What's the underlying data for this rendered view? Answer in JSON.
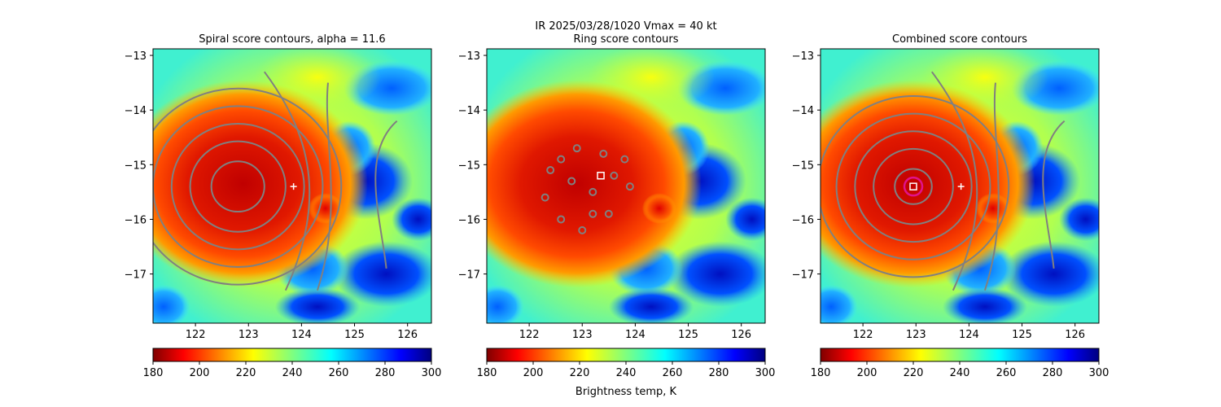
{
  "figure": {
    "suptitle_line1": "IR  2025/03/28/1020    Vmax = 40 kt",
    "colorbar_label": "Brightness temp, K"
  },
  "chart_data": [
    {
      "type": "heatmap",
      "title": "Spiral score contours, alpha = 11.6",
      "xlim": [
        121.2,
        126.45
      ],
      "ylim": [
        -17.9,
        -12.88
      ],
      "xticks": [
        122,
        123,
        124,
        125,
        126
      ],
      "yticks": [
        -13,
        -14,
        -15,
        -16,
        -17
      ],
      "colorbar": {
        "vmin": 180,
        "vmax": 300,
        "ticks": [
          180,
          200,
          220,
          240,
          260,
          280,
          300
        ],
        "cmap": "jet_r"
      },
      "markers": [
        {
          "kind": "plus",
          "lon": 123.85,
          "lat": -15.4,
          "color": "#ffffff"
        }
      ],
      "contour_rings": {
        "center": [
          122.8,
          -15.4
        ],
        "radii_deg": [
          0.5,
          0.9,
          1.25,
          1.6,
          1.95
        ]
      }
    },
    {
      "type": "heatmap",
      "title": "Ring score contours",
      "xlim": [
        121.2,
        126.45
      ],
      "ylim": [
        -17.9,
        -12.88
      ],
      "xticks": [
        122,
        123,
        124,
        125,
        126
      ],
      "yticks": [
        -13,
        -14,
        -15,
        -16,
        -17
      ],
      "colorbar": {
        "vmin": 180,
        "vmax": 300,
        "ticks": [
          180,
          200,
          220,
          240,
          260,
          280,
          300
        ],
        "cmap": "jet_r"
      },
      "markers": [
        {
          "kind": "square",
          "lon": 123.35,
          "lat": -15.2,
          "color": "#ffffff"
        }
      ]
    },
    {
      "type": "heatmap",
      "title": "Combined score contours",
      "xlim": [
        121.2,
        126.45
      ],
      "ylim": [
        -17.9,
        -12.88
      ],
      "xticks": [
        122,
        123,
        124,
        125,
        126
      ],
      "yticks": [
        -13,
        -14,
        -15,
        -16,
        -17
      ],
      "colorbar": {
        "vmin": 180,
        "vmax": 300,
        "ticks": [
          180,
          200,
          220,
          240,
          260,
          280,
          300
        ],
        "cmap": "jet_r"
      },
      "markers": [
        {
          "kind": "plus",
          "lon": 123.85,
          "lat": -15.4,
          "color": "#ffffff"
        },
        {
          "kind": "square",
          "lon": 122.95,
          "lat": -15.4,
          "color": "#ffffff"
        },
        {
          "kind": "circle",
          "lon": 122.95,
          "lat": -15.4,
          "color": "#e0138c"
        }
      ],
      "contour_rings": {
        "center": [
          122.95,
          -15.4
        ],
        "radii_deg": [
          0.35,
          0.75,
          1.1,
          1.45,
          1.8
        ]
      }
    }
  ]
}
